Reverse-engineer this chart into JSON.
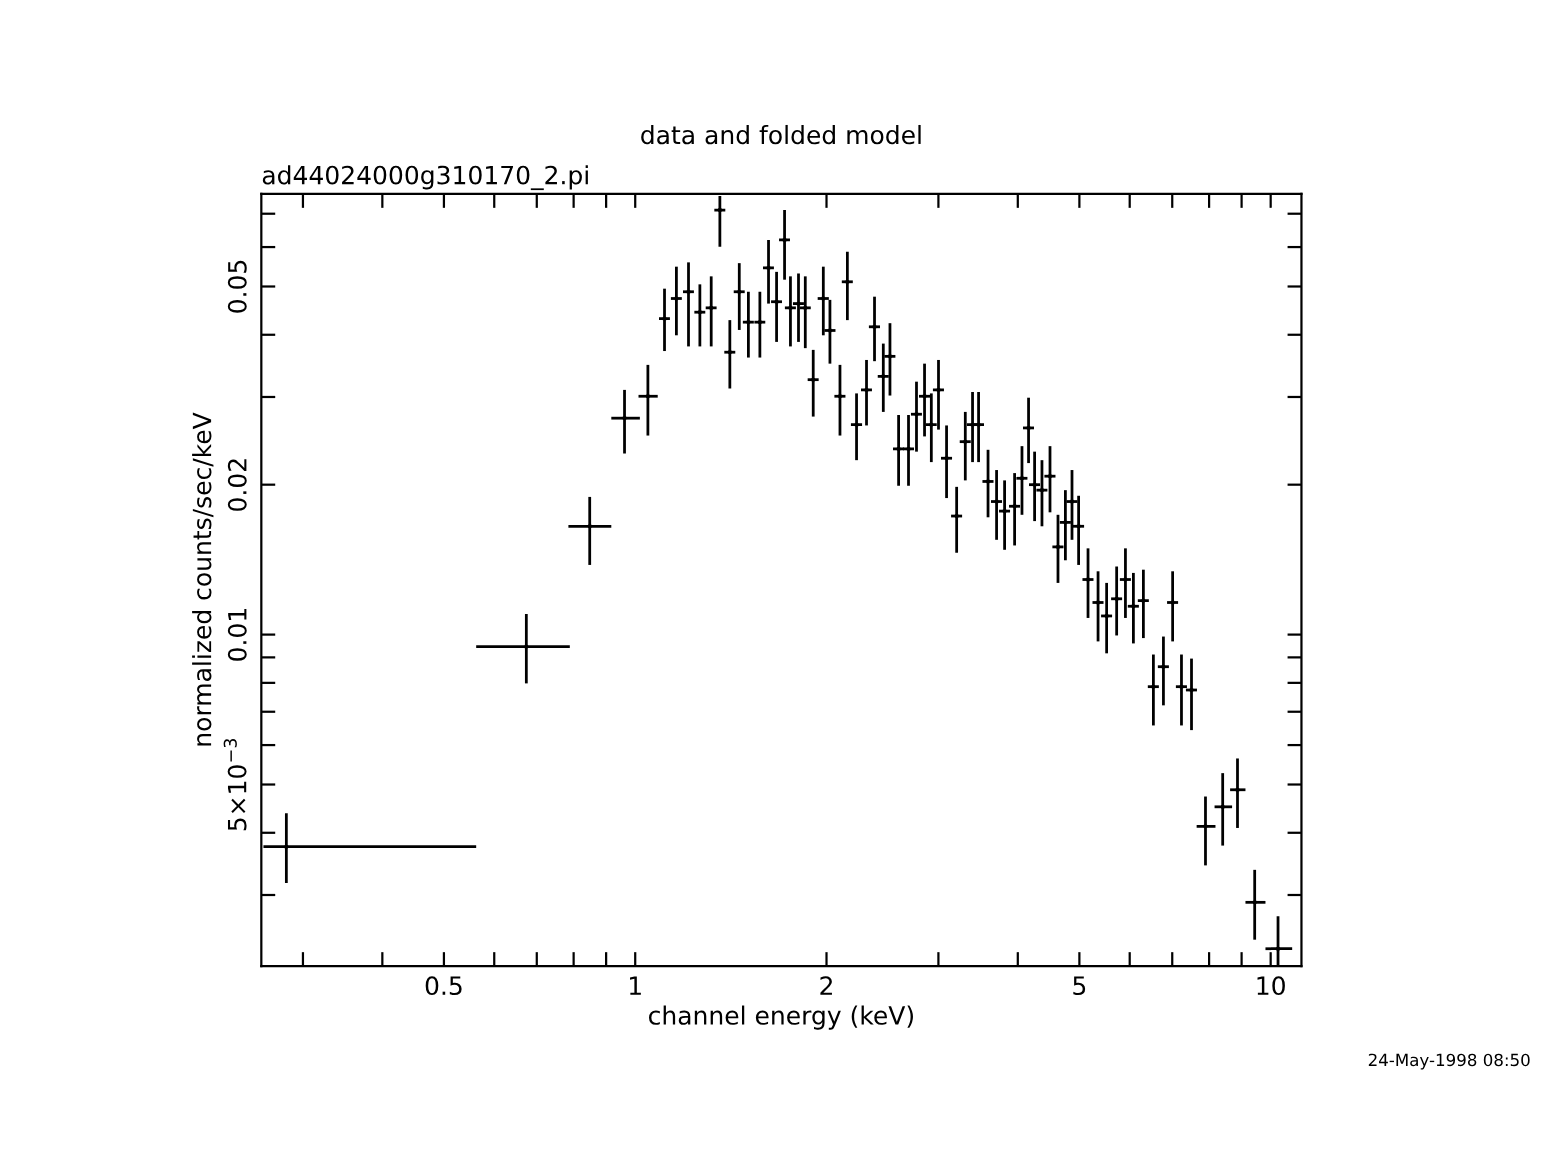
{
  "chart_data": {
    "type": "scatter",
    "title": "data and folded model",
    "subtitle": "ad44024000g310170_2.pi",
    "xlabel": "channel energy (keV)",
    "ylabel": "normalized counts/sec/keV",
    "annotations": [
      "24-May-1998 08:50"
    ],
    "log": "xy",
    "grid": false,
    "xlim": [
      0.258,
      11.18
    ],
    "ylim": [
      0.00216,
      0.0767
    ],
    "xticks": [
      {
        "value": 0.3,
        "label": null
      },
      {
        "value": 0.4,
        "label": null
      },
      0.5,
      {
        "value": 0.6,
        "label": null
      },
      {
        "value": 0.7,
        "label": null
      },
      {
        "value": 0.8,
        "label": null
      },
      {
        "value": 0.9,
        "label": null
      },
      1,
      2,
      {
        "value": 3,
        "label": null
      },
      {
        "value": 4,
        "label": null
      },
      5,
      {
        "value": 6,
        "label": null
      },
      {
        "value": 7,
        "label": null
      },
      {
        "value": 8,
        "label": null
      },
      {
        "value": 9,
        "label": null
      },
      10
    ],
    "yticks": [
      {
        "value": 0.003,
        "label": null
      },
      {
        "value": 0.004,
        "label": null
      },
      {
        "value": 0.005,
        "label": "5×10$^{−3}$"
      },
      {
        "value": 0.006,
        "label": null
      },
      {
        "value": 0.007,
        "label": null
      },
      {
        "value": 0.008,
        "label": null
      },
      {
        "value": 0.009,
        "label": null
      },
      0.01,
      0.02,
      {
        "value": 0.03,
        "label": null
      },
      {
        "value": 0.04,
        "label": null
      },
      0.05,
      {
        "value": 0.06,
        "label": null
      },
      {
        "value": 0.07,
        "label": null
      }
    ],
    "series": [
      {
        "color": "#000000",
        "x": [
          0.2825,
          0.674,
          0.848,
          0.962,
          1.047,
          1.112,
          1.161,
          1.213,
          1.264,
          1.317,
          1.359,
          1.409,
          1.458,
          1.507,
          1.571,
          1.621,
          1.669,
          1.718,
          1.755,
          1.807,
          1.852,
          1.906,
          1.977,
          2.025,
          2.1,
          2.157,
          2.23,
          2.312,
          2.38,
          2.457,
          2.517,
          2.597,
          2.692,
          2.771,
          2.853,
          2.924,
          3.001,
          3.09,
          3.205,
          3.307,
          3.395,
          3.47,
          3.591,
          3.704,
          3.813,
          3.954,
          4.061,
          4.159,
          4.251,
          4.366,
          4.495,
          4.627,
          4.753,
          4.868,
          4.986,
          5.159,
          5.35,
          5.519,
          5.723,
          5.908,
          6.081,
          6.305,
          6.538,
          6.78,
          7.01,
          7.238,
          7.506,
          7.896,
          8.404,
          8.867,
          9.437,
          10.27
        ],
        "values": [
          0.00375,
          0.00946,
          0.0165,
          0.0272,
          0.0301,
          0.0431,
          0.0473,
          0.0488,
          0.0444,
          0.0453,
          0.0712,
          0.0369,
          0.0488,
          0.0424,
          0.0424,
          0.0545,
          0.0466,
          0.062,
          0.0453,
          0.0462,
          0.0453,
          0.0325,
          0.0473,
          0.0408,
          0.0301,
          0.0511,
          0.0264,
          0.031,
          0.0415,
          0.033,
          0.0362,
          0.0236,
          0.0236,
          0.0277,
          0.0301,
          0.0264,
          0.031,
          0.0226,
          0.0173,
          0.0244,
          0.0264,
          0.0264,
          0.0203,
          0.0185,
          0.0177,
          0.0181,
          0.0206,
          0.026,
          0.02,
          0.0195,
          0.0208,
          0.015,
          0.0168,
          0.0185,
          0.0165,
          0.0129,
          0.0116,
          0.0109,
          0.0118,
          0.0129,
          0.0114,
          0.0117,
          0.00786,
          0.00862,
          0.0116,
          0.00786,
          0.00774,
          0.00412,
          0.00451,
          0.00488,
          0.0029,
          0.00234
        ],
        "errors": [
          [
            0.00317,
            0.00438
          ],
          [
            0.00798,
            0.011
          ],
          [
            0.0138,
            0.0189
          ],
          [
            0.0231,
            0.031
          ],
          [
            0.0251,
            0.0348
          ],
          [
            0.0371,
            0.0495
          ],
          [
            0.0399,
            0.0548
          ],
          [
            0.0379,
            0.0559
          ],
          [
            0.0379,
            0.0505
          ],
          [
            0.0379,
            0.0524
          ],
          [
            0.0601,
            0.076
          ],
          [
            0.0312,
            0.0428
          ],
          [
            0.0409,
            0.0557
          ],
          [
            0.036,
            0.0488
          ],
          [
            0.036,
            0.0488
          ],
          [
            0.0462,
            0.062
          ],
          [
            0.0387,
            0.0535
          ],
          [
            0.0516,
            0.0712
          ],
          [
            0.0379,
            0.0524
          ],
          [
            0.0387,
            0.0531
          ],
          [
            0.0376,
            0.0524
          ],
          [
            0.0274,
            0.0373
          ],
          [
            0.0399,
            0.0548
          ],
          [
            0.035,
            0.047
          ],
          [
            0.0251,
            0.0348
          ],
          [
            0.0428,
            0.0587
          ],
          [
            0.0224,
            0.0305
          ],
          [
            0.0263,
            0.0356
          ],
          [
            0.0354,
            0.0477
          ],
          [
            0.028,
            0.0384
          ],
          [
            0.0302,
            0.0422
          ],
          [
            0.0199,
            0.0276
          ],
          [
            0.0199,
            0.0276
          ],
          [
            0.0233,
            0.0322
          ],
          [
            0.025,
            0.035
          ],
          [
            0.0222,
            0.0305
          ],
          [
            0.0258,
            0.0356
          ],
          [
            0.0188,
            0.0263
          ],
          [
            0.0146,
            0.0198
          ],
          [
            0.0204,
            0.028
          ],
          [
            0.0222,
            0.0307
          ],
          [
            0.0222,
            0.0307
          ],
          [
            0.0172,
            0.0235
          ],
          [
            0.0155,
            0.0214
          ],
          [
            0.0148,
            0.0204
          ],
          [
            0.0151,
            0.0211
          ],
          [
            0.0174,
            0.0239
          ],
          [
            0.0221,
            0.0299
          ],
          [
            0.0169,
            0.0233
          ],
          [
            0.0165,
            0.0224
          ],
          [
            0.0176,
            0.0239
          ],
          [
            0.0127,
            0.0174
          ],
          [
            0.0141,
            0.0195
          ],
          [
            0.0155,
            0.0214
          ],
          [
            0.0138,
            0.019
          ],
          [
            0.0108,
            0.0149
          ],
          [
            0.00969,
            0.0134
          ],
          [
            0.00917,
            0.0127
          ],
          [
            0.00996,
            0.0137
          ],
          [
            0.0108,
            0.0149
          ],
          [
            0.0096,
            0.0133
          ],
          [
            0.00984,
            0.0135
          ],
          [
            0.00657,
            0.00912
          ],
          [
            0.00721,
            0.00991
          ],
          [
            0.00969,
            0.0134
          ],
          [
            0.00657,
            0.00912
          ],
          [
            0.00643,
            0.00895
          ],
          [
            0.00344,
            0.00473
          ],
          [
            0.00377,
            0.00527
          ],
          [
            0.00409,
            0.00564
          ],
          [
            0.00244,
            0.00337
          ],
          [
            0.00217,
            0.00272
          ]
        ],
        "xerrors": [
          [
            0.26,
            0.562
          ],
          [
            0.562,
            0.789
          ],
          [
            0.785,
            0.917
          ],
          [
            0.917,
            1.017
          ],
          [
            1.012,
            1.085
          ],
          [
            1.09,
            1.134
          ],
          [
            1.138,
            1.184
          ],
          [
            1.189,
            1.237
          ],
          [
            1.239,
            1.289
          ],
          [
            1.291,
            1.343
          ],
          [
            1.332,
            1.386
          ],
          [
            1.381,
            1.437
          ],
          [
            1.429,
            1.487
          ],
          [
            1.477,
            1.537
          ],
          [
            1.54,
            1.602
          ],
          [
            1.589,
            1.653
          ],
          [
            1.636,
            1.702
          ],
          [
            1.684,
            1.752
          ],
          [
            1.72,
            1.79
          ],
          [
            1.771,
            1.843
          ],
          [
            1.815,
            1.889
          ],
          [
            1.868,
            1.944
          ],
          [
            1.937,
            2.017
          ],
          [
            1.985,
            2.066
          ],
          [
            2.058,
            2.142
          ],
          [
            2.114,
            2.2
          ],
          [
            2.185,
            2.275
          ],
          [
            2.266,
            2.358
          ],
          [
            2.332,
            2.428
          ],
          [
            2.408,
            2.506
          ],
          [
            2.467,
            2.567
          ],
          [
            2.545,
            2.649
          ],
          [
            2.638,
            2.746
          ],
          [
            2.716,
            2.826
          ],
          [
            2.796,
            2.91
          ],
          [
            2.866,
            2.982
          ],
          [
            2.941,
            3.061
          ],
          [
            3.028,
            3.152
          ],
          [
            3.141,
            3.269
          ],
          [
            3.241,
            3.373
          ],
          [
            3.327,
            3.463
          ],
          [
            3.401,
            3.539
          ],
          [
            3.519,
            3.663
          ],
          [
            3.63,
            3.778
          ],
          [
            3.737,
            3.889
          ],
          [
            3.875,
            4.033
          ],
          [
            3.98,
            4.142
          ],
          [
            4.076,
            4.242
          ],
          [
            4.166,
            4.336
          ],
          [
            4.279,
            4.453
          ],
          [
            4.405,
            4.585
          ],
          [
            4.534,
            4.72
          ],
          [
            4.658,
            4.848
          ],
          [
            4.771,
            4.965
          ],
          [
            4.886,
            5.086
          ],
          [
            5.056,
            5.262
          ],
          [
            5.243,
            5.457
          ],
          [
            5.409,
            5.629
          ],
          [
            5.609,
            5.837
          ],
          [
            5.79,
            6.026
          ],
          [
            5.959,
            6.203
          ],
          [
            6.179,
            6.431
          ],
          [
            6.407,
            6.669
          ],
          [
            6.644,
            6.916
          ],
          [
            6.87,
            7.15
          ],
          [
            7.093,
            7.383
          ],
          [
            7.356,
            7.656
          ],
          [
            7.647,
            8.187
          ],
          [
            8.16,
            8.695
          ],
          [
            8.633,
            9.127
          ],
          [
            9.127,
            9.813
          ],
          [
            9.813,
            10.81
          ]
        ]
      }
    ]
  }
}
